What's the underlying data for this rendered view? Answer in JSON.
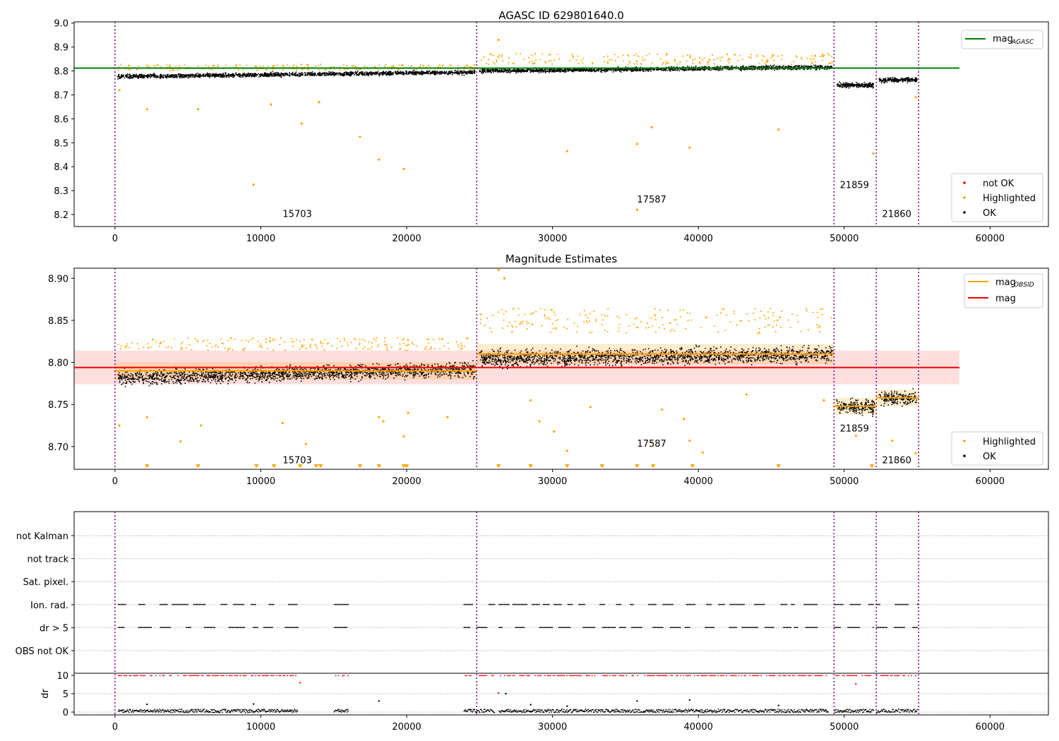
{
  "chart_data": [
    {
      "type": "scatter",
      "title": "AGASC ID 629801640.0",
      "xlim": [
        -2800,
        64000
      ],
      "ylim": [
        8.15,
        9.005
      ],
      "xticks": [
        0,
        10000,
        20000,
        30000,
        40000,
        50000,
        60000
      ],
      "yticks": [
        8.2,
        8.3,
        8.4,
        8.5,
        8.6,
        8.7,
        8.8,
        8.9,
        9.0
      ],
      "vlines": [
        0,
        24800,
        49300,
        52200,
        55100
      ],
      "mag_agasc": 8.812,
      "mag_agasc_xrange": [
        -2800,
        57900
      ],
      "observations": [
        {
          "obsid": "15703",
          "label_x": 11500,
          "label_y": 8.19,
          "x_range": [
            0,
            24800
          ],
          "ok_level": [
            8.779,
            8.797
          ],
          "spread": 0.014,
          "highlight_band": [
            8.805,
            8.83
          ]
        },
        {
          "obsid": "17587",
          "label_x": 35800,
          "label_y": 8.25,
          "x_range": [
            24800,
            49300
          ],
          "ok_level": [
            8.802,
            8.818
          ],
          "spread": 0.014,
          "highlight_band": [
            8.83,
            8.875
          ]
        },
        {
          "obsid": "21859",
          "label_x": 49700,
          "label_y": 8.31,
          "x_range": [
            49300,
            52200
          ],
          "ok_level": [
            8.742,
            8.742
          ],
          "spread": 0.016,
          "highlight_band": null
        },
        {
          "obsid": "21860",
          "label_x": 52600,
          "label_y": 8.19,
          "x_range": [
            52200,
            55100
          ],
          "ok_level": [
            8.765,
            8.765
          ],
          "spread": 0.016,
          "highlight_band": null
        }
      ],
      "outliers": [
        [
          300,
          8.72
        ],
        [
          2200,
          8.64
        ],
        [
          5700,
          8.64
        ],
        [
          9500,
          8.325
        ],
        [
          10700,
          8.66
        ],
        [
          12800,
          8.58
        ],
        [
          14000,
          8.67
        ],
        [
          16800,
          8.525
        ],
        [
          18100,
          8.43
        ],
        [
          19800,
          8.39
        ],
        [
          31000,
          8.465
        ],
        [
          35800,
          8.495
        ],
        [
          36800,
          8.565
        ],
        [
          39400,
          8.48
        ],
        [
          45500,
          8.555
        ],
        [
          35800,
          8.22
        ],
        [
          52000,
          8.455
        ],
        [
          54900,
          8.69
        ],
        [
          26300,
          8.93
        ]
      ],
      "legend_top": [
        {
          "label": "mag",
          "subscript": "AGASC",
          "color": "#008000"
        }
      ],
      "legend_bottom": [
        {
          "label": "not OK",
          "color": "#ff0000"
        },
        {
          "label": "Highlighted",
          "color": "#ffa500"
        },
        {
          "label": "OK",
          "color": "#000000"
        }
      ]
    },
    {
      "type": "scatter",
      "title": "Magnitude Estimates",
      "xlim": [
        -2800,
        64000
      ],
      "ylim": [
        8.673,
        8.912
      ],
      "xticks": [
        0,
        10000,
        20000,
        30000,
        40000,
        50000,
        60000
      ],
      "yticks": [
        8.7,
        8.75,
        8.8,
        8.85,
        8.9
      ],
      "vlines": [
        0,
        24800,
        49300,
        52200,
        55100
      ],
      "mag": 8.794,
      "mag_band": [
        8.774,
        8.814
      ],
      "mag_xrange": [
        -2800,
        57900
      ],
      "observations": [
        {
          "obsid": "15703",
          "label_x": 11500,
          "label_y": 8.68,
          "x_range": [
            0,
            24800
          ],
          "mag_obsid": 8.79,
          "ok_level": [
            8.782,
            8.792
          ],
          "spread": 0.014,
          "highlight_band": [
            8.815,
            8.83
          ]
        },
        {
          "obsid": "17587",
          "label_x": 35800,
          "label_y": 8.7,
          "x_range": [
            24800,
            49300
          ],
          "mag_obsid": 8.81,
          "ok_level": [
            8.805,
            8.81
          ],
          "spread": 0.016,
          "highlight_band": [
            8.835,
            8.865
          ]
        },
        {
          "obsid": "21859",
          "label_x": 49700,
          "label_y": 8.718,
          "x_range": [
            49300,
            52200
          ],
          "mag_obsid": 8.748,
          "ok_level": [
            8.748,
            8.748
          ],
          "spread": 0.013,
          "highlight_band": null
        },
        {
          "obsid": "21860",
          "label_x": 52600,
          "label_y": 8.68,
          "x_range": [
            52200,
            55100
          ],
          "mag_obsid": 8.758,
          "ok_level": [
            8.758,
            8.758
          ],
          "spread": 0.013,
          "highlight_band": null
        }
      ],
      "outliers": [
        [
          300,
          8.725
        ],
        [
          2200,
          8.735
        ],
        [
          4500,
          8.706
        ],
        [
          5900,
          8.725
        ],
        [
          11500,
          8.728
        ],
        [
          13100,
          8.703
        ],
        [
          18100,
          8.735
        ],
        [
          18400,
          8.73
        ],
        [
          19800,
          8.712
        ],
        [
          20100,
          8.74
        ],
        [
          22800,
          8.735
        ],
        [
          26300,
          8.91
        ],
        [
          26700,
          8.9
        ],
        [
          28500,
          8.755
        ],
        [
          29100,
          8.73
        ],
        [
          30100,
          8.718
        ],
        [
          31000,
          8.695
        ],
        [
          32600,
          8.747
        ],
        [
          36800,
          8.705
        ],
        [
          37500,
          8.744
        ],
        [
          39000,
          8.733
        ],
        [
          39400,
          8.707
        ],
        [
          40300,
          8.693
        ],
        [
          43300,
          8.762
        ],
        [
          48600,
          8.755
        ],
        [
          50800,
          8.713
        ],
        [
          51900,
          8.677
        ],
        [
          53300,
          8.707
        ],
        [
          54900,
          8.692
        ]
      ],
      "lower_markers": [
        2200,
        5700,
        9700,
        10900,
        12700,
        13800,
        14100,
        16800,
        18100,
        19800,
        20000,
        26300,
        28500,
        31000,
        33400,
        35800,
        36900,
        39600,
        45500,
        51900
      ],
      "legend_top": [
        {
          "label": "mag",
          "subscript": "OBSID",
          "color": "#ffa500"
        },
        {
          "label": "mag",
          "subscript": "",
          "color": "#ff0000"
        }
      ],
      "legend_bottom": [
        {
          "label": "Highlighted",
          "color": "#ffa500"
        },
        {
          "label": "OK",
          "color": "#000000"
        }
      ]
    },
    {
      "type": "scatter",
      "xlim": [
        -2800,
        64000
      ],
      "xticks": [
        0,
        10000,
        20000,
        30000,
        40000,
        50000,
        60000
      ],
      "vlines": [
        0,
        24800,
        49300,
        52200,
        55100
      ],
      "flag_labels": [
        "not Kalman",
        "not track",
        "Sat. pixel.",
        "Ion. rad.",
        "dr > 5",
        "OBS not OK"
      ],
      "flag_segments": [
        [
          200,
          12500
        ],
        [
          15000,
          16000
        ],
        [
          23900,
          26000
        ],
        [
          26300,
          48900
        ],
        [
          49300,
          52000
        ],
        [
          52200,
          55000
        ]
      ],
      "dr": {
        "ylabel": "dr",
        "ylim": [
          0,
          10
        ],
        "yticks": [
          0,
          5,
          10
        ],
        "outliers": [
          [
            2200,
            2.1
          ],
          [
            9500,
            2.2
          ],
          [
            12700,
            8.0
          ],
          [
            18100,
            3.0
          ],
          [
            26300,
            5.2
          ],
          [
            26800,
            5.0
          ],
          [
            28500,
            2.0
          ],
          [
            35800,
            3.0
          ],
          [
            39400,
            3.3
          ],
          [
            45500,
            1.8
          ],
          [
            50800,
            7.7
          ],
          [
            31000,
            1.6
          ]
        ]
      }
    }
  ]
}
